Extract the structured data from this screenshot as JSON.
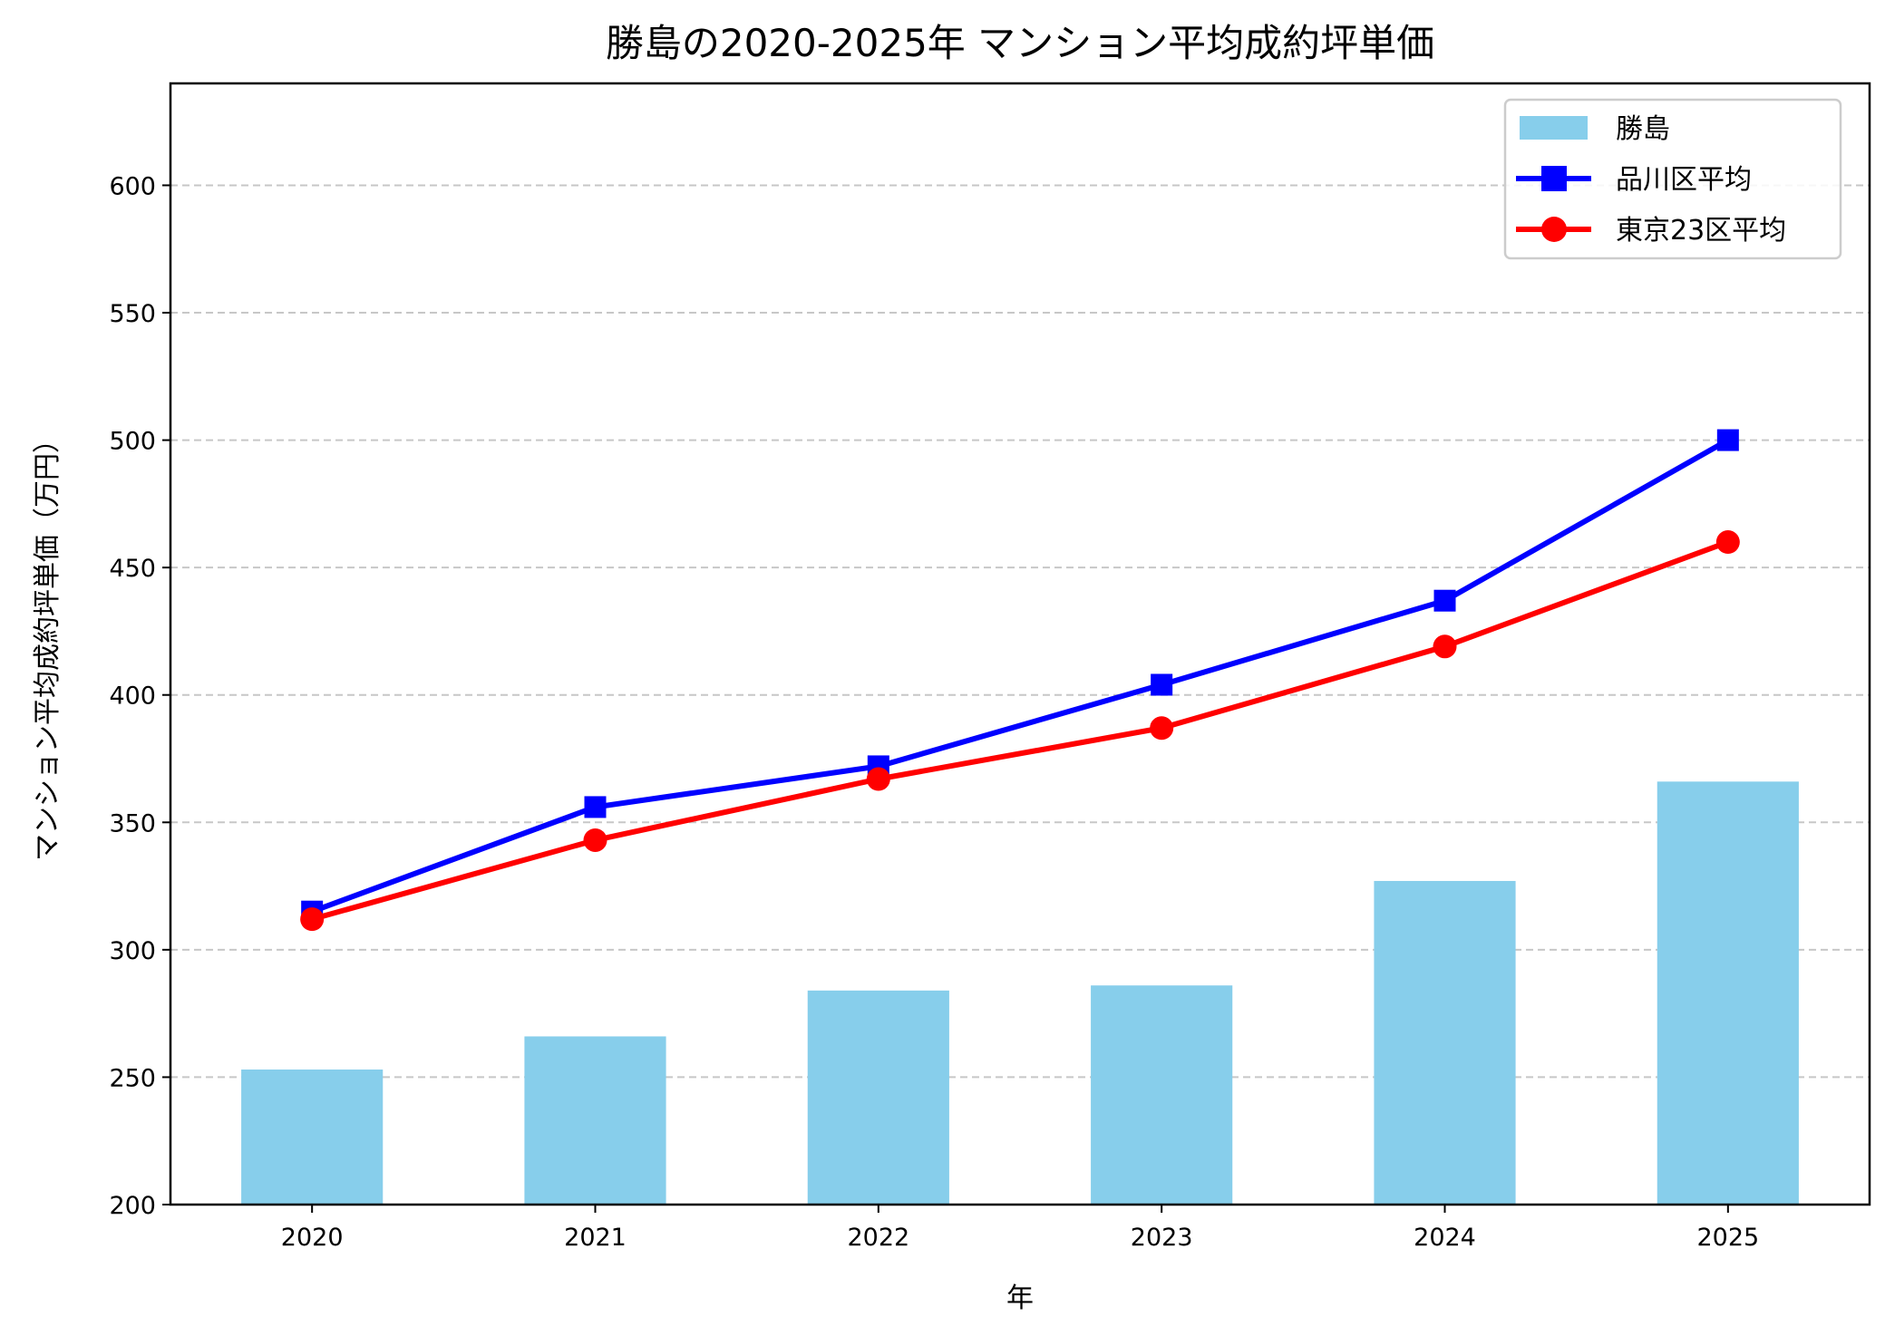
{
  "chart_data": {
    "type": "bar+line",
    "title": "勝島の2020-2025年 マンション平均成約坪単価",
    "xlabel": "年",
    "ylabel": "マンション平均成約坪単価（万円）",
    "categories": [
      "2020",
      "2021",
      "2022",
      "2023",
      "2024",
      "2025"
    ],
    "ylim": [
      200,
      640
    ],
    "yticks": [
      200,
      250,
      300,
      350,
      400,
      450,
      500,
      550,
      600
    ],
    "grid": "y-dashed",
    "legend_placement": "top-right",
    "series": [
      {
        "name": "勝島",
        "kind": "bar",
        "color": "#87CEEB",
        "values": [
          253,
          266,
          284,
          286,
          327,
          366
        ]
      },
      {
        "name": "品川区平均",
        "kind": "line",
        "marker": "square",
        "color": "#0000FF",
        "values": [
          315,
          356,
          372,
          404,
          437,
          500
        ]
      },
      {
        "name": "東京23区平均",
        "kind": "line",
        "marker": "circle",
        "color": "#FF0000",
        "values": [
          312,
          343,
          367,
          387,
          419,
          460
        ]
      }
    ]
  }
}
